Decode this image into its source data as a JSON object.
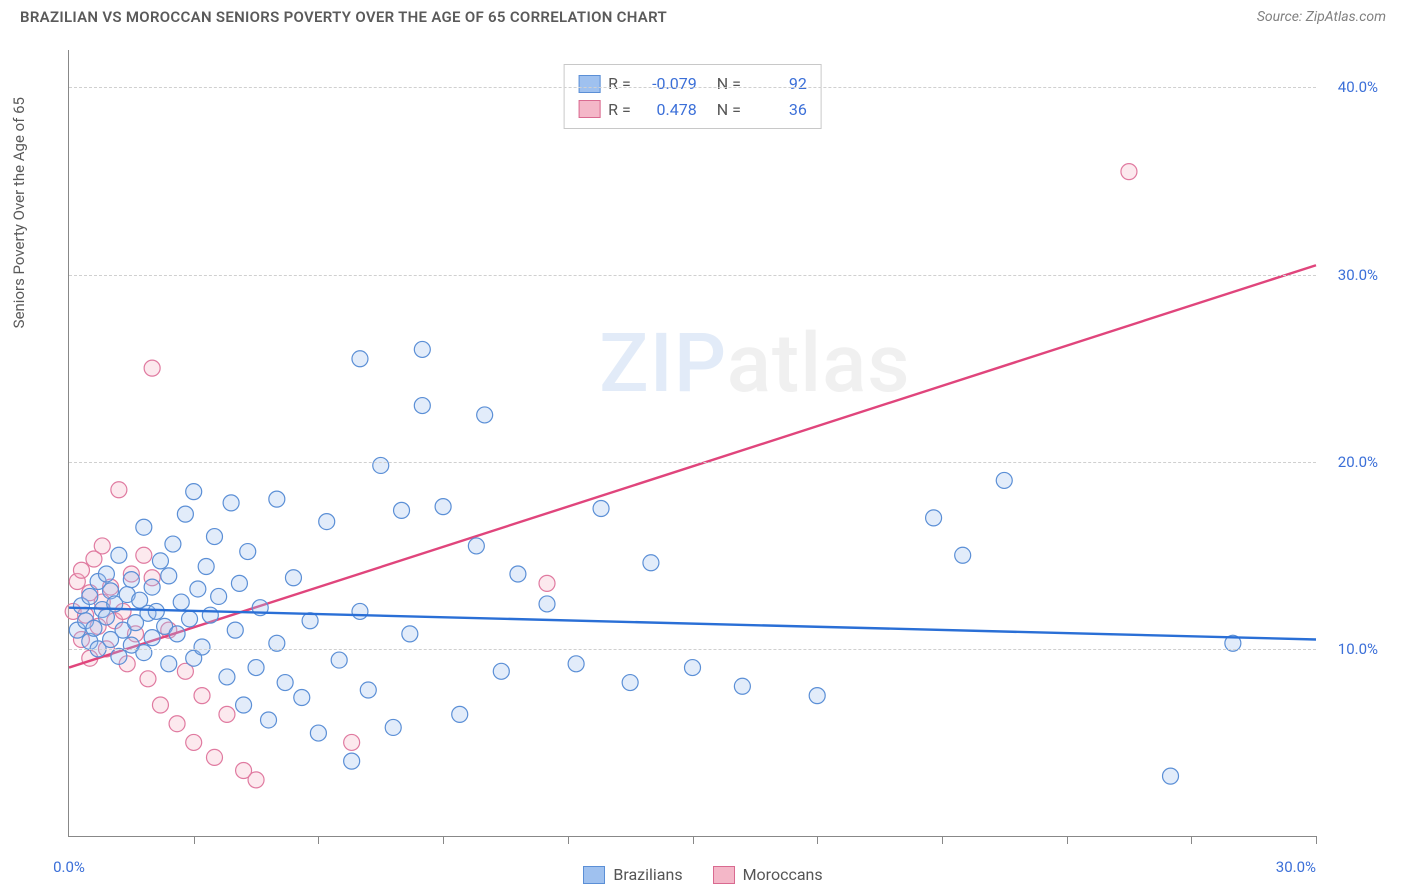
{
  "header": {
    "title": "BRAZILIAN VS MOROCCAN SENIORS POVERTY OVER THE AGE OF 65 CORRELATION CHART",
    "source_label": "Source:",
    "source_name": "ZipAtlas.com"
  },
  "axes": {
    "ylabel": "Seniors Poverty Over the Age of 65",
    "xlim": [
      0,
      30
    ],
    "ylim": [
      0,
      42
    ],
    "xtick_labels": [
      {
        "v": 0,
        "t": "0.0%"
      },
      {
        "v": 30,
        "t": "30.0%"
      }
    ],
    "xtick_positions": [
      3,
      6,
      9,
      12,
      15,
      18,
      21,
      24,
      27,
      30
    ],
    "ytick_labels": [
      {
        "v": 10,
        "t": "10.0%"
      },
      {
        "v": 20,
        "t": "20.0%"
      },
      {
        "v": 30,
        "t": "30.0%"
      },
      {
        "v": 40,
        "t": "40.0%"
      }
    ],
    "grid_positions": [
      10,
      20,
      30,
      40
    ],
    "grid_color": "#d0d0d0",
    "axis_color": "#888888",
    "background_color": "#ffffff"
  },
  "watermark": {
    "part1": "ZIP",
    "part2": "atlas"
  },
  "stats_box": {
    "rows": [
      {
        "color_fill": "#9fc1ef",
        "color_stroke": "#5b8fd6",
        "r_label": "R =",
        "r_val": "-0.079",
        "n_label": "N =",
        "n_val": "92"
      },
      {
        "color_fill": "#f4b7c8",
        "color_stroke": "#d96a90",
        "r_label": "R =",
        "r_val": "0.478",
        "n_label": "N =",
        "n_val": "36"
      }
    ]
  },
  "legend": {
    "items": [
      {
        "label": "Brazilians",
        "fill": "#9fc1ef",
        "stroke": "#5b8fd6"
      },
      {
        "label": "Moroccans",
        "fill": "#f4b7c8",
        "stroke": "#d96a90"
      }
    ]
  },
  "series": {
    "brazilians": {
      "color_fill": "#9fc1ef",
      "color_stroke": "#5b8fd6",
      "marker_radius": 8,
      "reg_line": {
        "x1": 0,
        "y1": 12.2,
        "x2": 30,
        "y2": 10.5,
        "color": "#2a6fd6"
      },
      "points": [
        [
          0.2,
          11.0
        ],
        [
          0.3,
          12.3
        ],
        [
          0.4,
          11.5
        ],
        [
          0.5,
          10.4
        ],
        [
          0.5,
          12.8
        ],
        [
          0.6,
          11.1
        ],
        [
          0.7,
          13.6
        ],
        [
          0.7,
          10.0
        ],
        [
          0.8,
          12.1
        ],
        [
          0.9,
          14.0
        ],
        [
          0.9,
          11.7
        ],
        [
          1.0,
          10.5
        ],
        [
          1.0,
          13.1
        ],
        [
          1.1,
          12.4
        ],
        [
          1.2,
          9.6
        ],
        [
          1.2,
          15.0
        ],
        [
          1.3,
          11.0
        ],
        [
          1.4,
          12.9
        ],
        [
          1.5,
          10.2
        ],
        [
          1.5,
          13.7
        ],
        [
          1.6,
          11.4
        ],
        [
          1.7,
          12.6
        ],
        [
          1.8,
          9.8
        ],
        [
          1.8,
          16.5
        ],
        [
          1.9,
          11.9
        ],
        [
          2.0,
          10.6
        ],
        [
          2.0,
          13.3
        ],
        [
          2.1,
          12.0
        ],
        [
          2.2,
          14.7
        ],
        [
          2.3,
          11.2
        ],
        [
          2.4,
          9.2
        ],
        [
          2.4,
          13.9
        ],
        [
          2.5,
          15.6
        ],
        [
          2.6,
          10.8
        ],
        [
          2.7,
          12.5
        ],
        [
          2.8,
          17.2
        ],
        [
          2.9,
          11.6
        ],
        [
          3.0,
          18.4
        ],
        [
          3.0,
          9.5
        ],
        [
          3.1,
          13.2
        ],
        [
          3.2,
          10.1
        ],
        [
          3.3,
          14.4
        ],
        [
          3.4,
          11.8
        ],
        [
          3.5,
          16.0
        ],
        [
          3.6,
          12.8
        ],
        [
          3.8,
          8.5
        ],
        [
          3.9,
          17.8
        ],
        [
          4.0,
          11.0
        ],
        [
          4.1,
          13.5
        ],
        [
          4.2,
          7.0
        ],
        [
          4.3,
          15.2
        ],
        [
          4.5,
          9.0
        ],
        [
          4.6,
          12.2
        ],
        [
          4.8,
          6.2
        ],
        [
          5.0,
          18.0
        ],
        [
          5.0,
          10.3
        ],
        [
          5.2,
          8.2
        ],
        [
          5.4,
          13.8
        ],
        [
          5.6,
          7.4
        ],
        [
          5.8,
          11.5
        ],
        [
          6.0,
          5.5
        ],
        [
          6.2,
          16.8
        ],
        [
          6.5,
          9.4
        ],
        [
          6.8,
          4.0
        ],
        [
          7.0,
          12.0
        ],
        [
          7.0,
          25.5
        ],
        [
          7.2,
          7.8
        ],
        [
          7.5,
          19.8
        ],
        [
          7.8,
          5.8
        ],
        [
          8.0,
          17.4
        ],
        [
          8.2,
          10.8
        ],
        [
          8.5,
          23.0
        ],
        [
          8.5,
          26.0
        ],
        [
          9.0,
          17.6
        ],
        [
          9.4,
          6.5
        ],
        [
          9.8,
          15.5
        ],
        [
          10.0,
          22.5
        ],
        [
          10.4,
          8.8
        ],
        [
          10.8,
          14.0
        ],
        [
          11.5,
          12.4
        ],
        [
          12.2,
          9.2
        ],
        [
          12.8,
          17.5
        ],
        [
          13.5,
          8.2
        ],
        [
          14.0,
          14.6
        ],
        [
          15.0,
          9.0
        ],
        [
          16.2,
          8.0
        ],
        [
          18.0,
          7.5
        ],
        [
          20.8,
          17.0
        ],
        [
          21.5,
          15.0
        ],
        [
          22.5,
          19.0
        ],
        [
          26.5,
          3.2
        ],
        [
          28.0,
          10.3
        ]
      ]
    },
    "moroccans": {
      "color_fill": "#f4b7c8",
      "color_stroke": "#e07aa0",
      "marker_radius": 8,
      "reg_line": {
        "x1": 0,
        "y1": 9.0,
        "x2": 30,
        "y2": 30.5,
        "color": "#e0457c"
      },
      "points": [
        [
          0.1,
          12.0
        ],
        [
          0.2,
          13.6
        ],
        [
          0.3,
          10.5
        ],
        [
          0.3,
          14.2
        ],
        [
          0.4,
          11.8
        ],
        [
          0.5,
          13.0
        ],
        [
          0.5,
          9.5
        ],
        [
          0.6,
          14.8
        ],
        [
          0.7,
          11.2
        ],
        [
          0.8,
          12.5
        ],
        [
          0.8,
          15.5
        ],
        [
          0.9,
          10.0
        ],
        [
          1.0,
          13.3
        ],
        [
          1.1,
          11.5
        ],
        [
          1.2,
          18.5
        ],
        [
          1.3,
          12.0
        ],
        [
          1.4,
          9.2
        ],
        [
          1.5,
          14.0
        ],
        [
          1.6,
          10.8
        ],
        [
          1.8,
          15.0
        ],
        [
          1.9,
          8.4
        ],
        [
          2.0,
          13.8
        ],
        [
          2.0,
          25.0
        ],
        [
          2.2,
          7.0
        ],
        [
          2.4,
          11.0
        ],
        [
          2.6,
          6.0
        ],
        [
          2.8,
          8.8
        ],
        [
          3.0,
          5.0
        ],
        [
          3.2,
          7.5
        ],
        [
          3.5,
          4.2
        ],
        [
          3.8,
          6.5
        ],
        [
          4.2,
          3.5
        ],
        [
          4.5,
          3.0
        ],
        [
          6.8,
          5.0
        ],
        [
          11.5,
          13.5
        ],
        [
          25.5,
          35.5
        ]
      ]
    }
  }
}
